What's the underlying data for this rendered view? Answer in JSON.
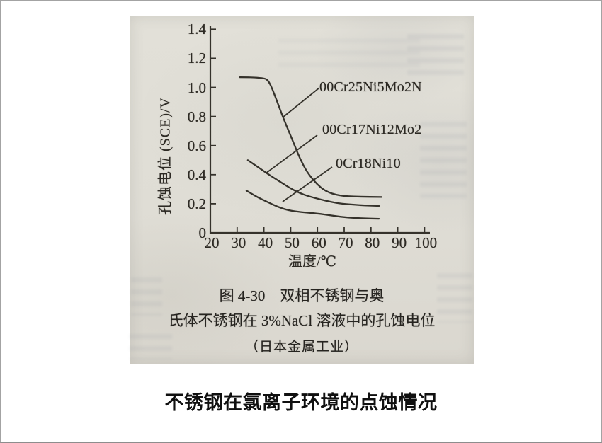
{
  "page": {
    "background": "#ffffff",
    "border_color": "#a3a3a3"
  },
  "figure": {
    "caption_line1": "图 4-30　双相不锈钢与奥",
    "caption_line2": "氏体不锈钢在 3%NaCl 溶液中的孔蚀电位",
    "caption_source": "（日本金属工业）",
    "page_title": "不锈钢在氯离子环境的点蚀情况"
  },
  "chart_data": {
    "type": "line",
    "title": "图 4-30 双相不锈钢与奥氏体不锈钢在 3%NaCl 溶液中的孔蚀电位（日本金属工业）",
    "xlabel": "温度/℃",
    "ylabel": "孔蚀电位 (SCE)/V",
    "xlim": [
      20,
      100
    ],
    "ylim": [
      0,
      1.4
    ],
    "x_ticks": [
      20,
      30,
      40,
      50,
      60,
      70,
      80,
      90,
      100
    ],
    "y_ticks": [
      0,
      0.2,
      0.4,
      0.6,
      0.8,
      1.0,
      1.2,
      1.4
    ],
    "y_tick_labels": [
      "0",
      "0.2",
      "0.4",
      "0.6",
      "0.8",
      "1.0",
      "1.2",
      "1.4"
    ],
    "grid": false,
    "legend_position": "inline-labels-with-pointer-lines",
    "line_color": "#35322b",
    "series": [
      {
        "name": "00Cr25Ni5Mo2N",
        "points": [
          [
            31,
            1.07
          ],
          [
            40,
            1.07
          ],
          [
            42,
            1.04
          ],
          [
            44,
            0.95
          ],
          [
            47,
            0.8
          ],
          [
            49.5,
            0.69
          ],
          [
            51.5,
            0.6
          ],
          [
            53.5,
            0.51
          ],
          [
            56,
            0.42
          ],
          [
            59.5,
            0.34
          ],
          [
            63,
            0.285
          ],
          [
            68,
            0.255
          ],
          [
            75,
            0.248
          ],
          [
            84,
            0.246
          ]
        ]
      },
      {
        "name": "00Cr17Ni12Mo2",
        "points": [
          [
            34,
            0.5
          ],
          [
            38,
            0.45
          ],
          [
            41,
            0.41
          ],
          [
            44,
            0.375
          ],
          [
            47,
            0.34
          ],
          [
            50,
            0.305
          ],
          [
            53.5,
            0.272
          ],
          [
            57,
            0.25
          ],
          [
            61,
            0.23
          ],
          [
            65,
            0.213
          ],
          [
            69,
            0.2
          ],
          [
            76,
            0.19
          ],
          [
            83,
            0.185
          ]
        ]
      },
      {
        "name": "0Cr18Ni10",
        "points": [
          [
            33.5,
            0.29
          ],
          [
            37,
            0.25
          ],
          [
            41,
            0.215
          ],
          [
            45,
            0.18
          ],
          [
            49,
            0.155
          ],
          [
            54,
            0.142
          ],
          [
            60,
            0.133
          ],
          [
            65,
            0.12
          ],
          [
            70,
            0.107
          ],
          [
            76,
            0.1
          ],
          [
            83,
            0.097
          ]
        ]
      }
    ]
  }
}
